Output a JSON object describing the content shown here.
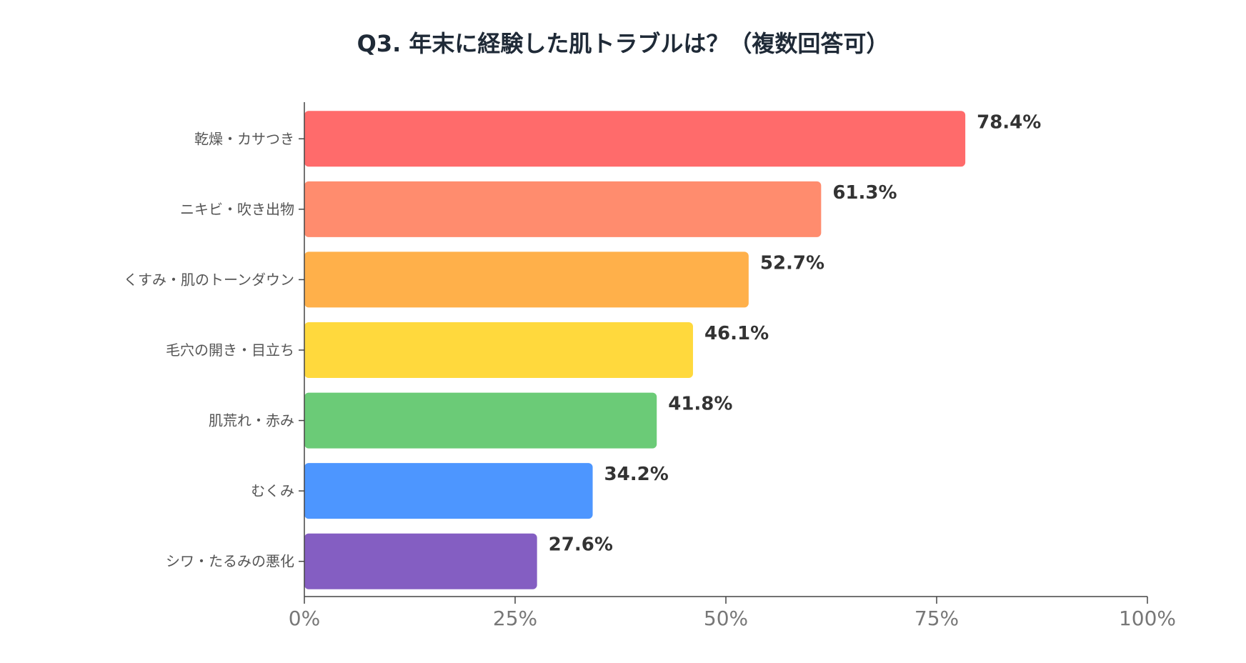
{
  "chart_data": {
    "type": "bar",
    "orientation": "horizontal",
    "title": "Q3. 年末に経験した肌トラブルは？（複数回答可）",
    "categories": [
      "乾燥・カサつき",
      "ニキビ・吹き出物",
      "くすみ・肌のトーンダウン",
      "毛穴の開き・目立ち",
      "肌荒れ・赤み",
      "むくみ",
      "シワ・たるみの悪化"
    ],
    "values": [
      78.4,
      61.3,
      52.7,
      46.1,
      41.8,
      34.2,
      27.6
    ],
    "value_labels": [
      "78.4%",
      "61.3%",
      "52.7%",
      "46.1%",
      "41.8%",
      "34.2%",
      "27.6%"
    ],
    "colors": [
      "#ff6b6b",
      "#ff8c6e",
      "#ffb04a",
      "#ffd93d",
      "#6bcb77",
      "#4d96ff",
      "#845ec2"
    ],
    "xlim": [
      0,
      100
    ],
    "xticks": [
      0,
      25,
      50,
      75,
      100
    ],
    "xtick_labels": [
      "0%",
      "25%",
      "50%",
      "75%",
      "100%"
    ],
    "xlabel": "",
    "ylabel": "",
    "grid": false,
    "legend": "none"
  }
}
